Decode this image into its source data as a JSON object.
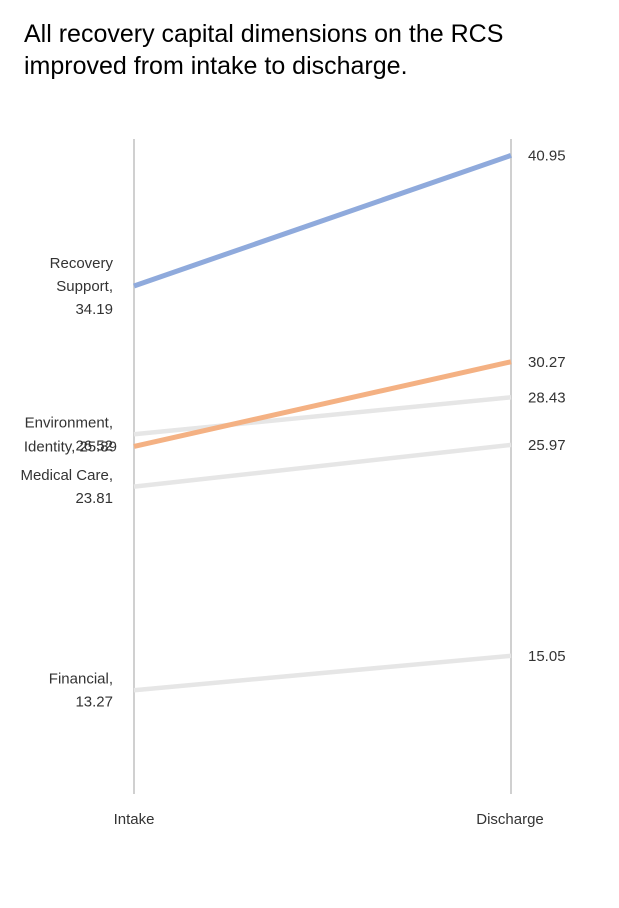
{
  "chart_data": {
    "type": "line",
    "title": "All recovery capital dimensions on the RCS improved from intake to discharge.",
    "categories": [
      "Intake",
      "Discharge"
    ],
    "series": [
      {
        "name": "Recovery Support",
        "values": [
          34.19,
          40.95
        ],
        "color": "#8faadc",
        "highlight": true
      },
      {
        "name": "Environment",
        "values": [
          26.52,
          28.43
        ],
        "color": "#e6e6e6",
        "highlight": false
      },
      {
        "name": "Identity",
        "values": [
          25.89,
          30.27
        ],
        "color": "#f4b183",
        "highlight": true
      },
      {
        "name": "Medical Care",
        "values": [
          23.81,
          25.97
        ],
        "color": "#e6e6e6",
        "highlight": false
      },
      {
        "name": "Financial",
        "values": [
          13.27,
          15.05
        ],
        "color": "#e6e6e6",
        "highlight": false
      }
    ],
    "labels": {
      "start": [
        {
          "lines": [
            "Recovery",
            "Support,",
            "34.19"
          ]
        },
        {
          "lines": [
            "Environment,",
            "26.52"
          ]
        },
        {
          "lines": [
            "Identity, 25.89"
          ]
        },
        {
          "lines": [
            "Medical Care,",
            "23.81"
          ]
        },
        {
          "lines": [
            "Financial,",
            "13.27"
          ]
        }
      ],
      "end": [
        "40.95",
        "28.43",
        "30.27",
        "25.97",
        "15.05"
      ]
    },
    "axis_color": "#d0d0d0",
    "grid": false,
    "legend": "none"
  }
}
